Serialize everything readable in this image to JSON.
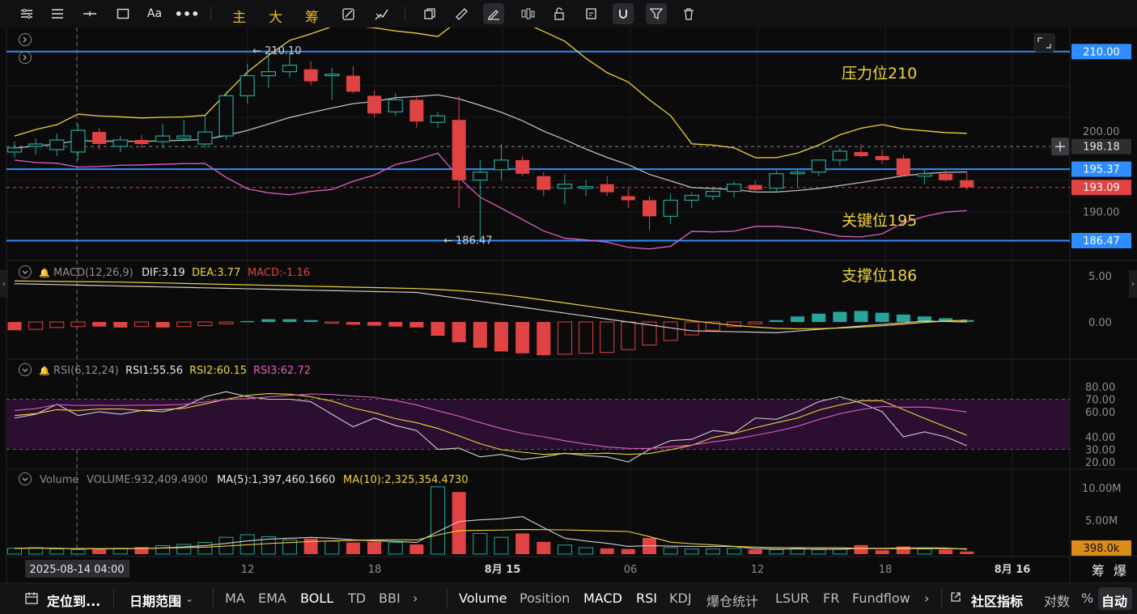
{
  "toolbar": {
    "char_zhu": "主",
    "char_da": "大",
    "char_chou": "筹",
    "text_aa": "Aa",
    "icons": [
      "settings-lines-icon",
      "menu-lines-icon",
      "horizontal-line-icon",
      "rectangle-icon",
      "text-icon",
      "more-dots-icon",
      "draw-tool-icon",
      "path-tool-icon",
      "copy-icon",
      "ruler-icon",
      "pen-icon",
      "candle-compare-icon",
      "lock-icon",
      "edit-icon",
      "magnet-icon",
      "filter-icon",
      "delete-icon"
    ]
  },
  "chart_data": {
    "type": "candlestick",
    "price_axis": {
      "ticks": [
        "200.00",
        "190.00"
      ],
      "min": 184,
      "max": 213
    },
    "time_axis": {
      "ticks": [
        "12",
        "18",
        "8月 15",
        "06",
        "12",
        "18",
        "8月 16"
      ],
      "crosshair_label": "2025-08-14 04:00"
    },
    "levels": [
      {
        "value": 210.0,
        "label": "210.00",
        "annotation": "压力位210"
      },
      {
        "value": 195.37,
        "label": "195.37",
        "annotation": "关键位195"
      },
      {
        "value": 186.47,
        "label": "186.47",
        "annotation": "支撑位186"
      }
    ],
    "current_price": {
      "value": 193.09,
      "label": "193.09"
    },
    "crosshair_price": {
      "value": 198.18,
      "label": "198.18"
    },
    "high_marker": "← 210.10",
    "low_marker": "← 186.47",
    "candles": [
      [
        197.5,
        198.8,
        196.8,
        198.0
      ],
      [
        198.2,
        199.2,
        197.2,
        198.5
      ],
      [
        197.8,
        199.8,
        197.0,
        199.0
      ],
      [
        197.5,
        201.0,
        196.5,
        200.2
      ],
      [
        200.0,
        200.5,
        197.8,
        198.5
      ],
      [
        198.2,
        199.5,
        197.5,
        199.0
      ],
      [
        199.0,
        199.6,
        198.0,
        198.5
      ],
      [
        198.8,
        201.0,
        198.0,
        199.5
      ],
      [
        199.2,
        201.5,
        198.8,
        199.5
      ],
      [
        198.5,
        202.0,
        198.0,
        200.0
      ],
      [
        199.5,
        205.0,
        199.0,
        204.5
      ],
      [
        204.5,
        208.5,
        203.5,
        207.0
      ],
      [
        207.0,
        209.5,
        205.5,
        207.5
      ],
      [
        207.5,
        210.1,
        206.8,
        208.3
      ],
      [
        207.8,
        208.8,
        205.8,
        206.3
      ],
      [
        207.0,
        208.0,
        204.0,
        207.2
      ],
      [
        207.0,
        208.2,
        204.8,
        205.0
      ],
      [
        204.5,
        205.2,
        201.8,
        202.3
      ],
      [
        202.5,
        204.8,
        202.0,
        204.0
      ],
      [
        204.0,
        204.5,
        200.5,
        201.3
      ],
      [
        201.2,
        202.5,
        200.5,
        202.0
      ],
      [
        201.5,
        204.5,
        190.5,
        194.0
      ],
      [
        194.0,
        196.5,
        186.47,
        195.0
      ],
      [
        195.3,
        198.5,
        194.0,
        196.5
      ],
      [
        196.5,
        197.0,
        194.5,
        194.8
      ],
      [
        194.5,
        195.0,
        192.0,
        192.8
      ],
      [
        193.0,
        194.8,
        191.0,
        193.5
      ],
      [
        193.0,
        194.0,
        192.0,
        193.2
      ],
      [
        193.5,
        194.5,
        192.0,
        192.5
      ],
      [
        192.0,
        193.0,
        190.5,
        191.5
      ],
      [
        191.5,
        192.0,
        187.8,
        189.5
      ],
      [
        189.5,
        192.3,
        188.5,
        191.5
      ],
      [
        191.5,
        192.5,
        190.5,
        192.1
      ],
      [
        192.0,
        193.2,
        191.5,
        192.6
      ],
      [
        192.6,
        193.8,
        191.8,
        193.5
      ],
      [
        193.4,
        194.0,
        192.5,
        192.8
      ],
      [
        193.0,
        195.2,
        192.5,
        194.8
      ],
      [
        194.8,
        195.5,
        193.2,
        195.0
      ],
      [
        195.0,
        196.5,
        194.5,
        196.5
      ],
      [
        196.5,
        198.0,
        195.8,
        197.6
      ],
      [
        197.5,
        198.5,
        196.8,
        197.0
      ],
      [
        197.0,
        197.8,
        196.0,
        196.5
      ],
      [
        196.7,
        197.2,
        194.5,
        194.6
      ],
      [
        194.5,
        195.5,
        193.5,
        194.8
      ],
      [
        194.8,
        195.5,
        193.8,
        194.0
      ],
      [
        194.0,
        195.0,
        192.8,
        193.09
      ]
    ]
  },
  "macd": {
    "title": "MACD(12,26,9)",
    "dif": "DIF:3.19",
    "dea": "DEA:3.77",
    "macd": "MACD:-1.16",
    "axis": [
      "5.00",
      "0.00"
    ],
    "hist": [
      -0.9,
      -0.8,
      -0.6,
      -0.5,
      -0.5,
      -0.6,
      -0.5,
      -0.6,
      -0.5,
      -0.4,
      -0.2,
      0.1,
      0.3,
      0.3,
      0.2,
      -0.1,
      -0.3,
      -0.4,
      -0.5,
      -0.6,
      -1.5,
      -2.2,
      -2.8,
      -3.2,
      -3.4,
      -3.6,
      -3.5,
      -3.4,
      -3.3,
      -3.0,
      -2.5,
      -2.0,
      -1.4,
      -0.9,
      -0.5,
      -0.2,
      0.2,
      0.6,
      0.9,
      1.1,
      1.2,
      1.0,
      0.8,
      0.6,
      0.4,
      0.2
    ]
  },
  "rsi": {
    "title": "RSI(6,12,24)",
    "rsi1": "RSI1:55.56",
    "rsi2": "RSI2:60.15",
    "rsi3": "RSI3:62.72",
    "axis": [
      "80.00",
      "70.00",
      "60.00",
      "40.00",
      "30.00",
      "20.00"
    ]
  },
  "volume": {
    "title": "Volume",
    "vol": "VOLUME:932,409.4900",
    "ma5": "MA(5):1,397,460.1660",
    "ma10": "MA(10):2,325,354.4730",
    "axis": [
      "10.00M",
      "5.00M"
    ],
    "current_label": "398.0k",
    "bars": [
      0.9,
      1.0,
      0.8,
      0.7,
      0.8,
      0.9,
      1.1,
      1.3,
      1.5,
      1.8,
      2.6,
      3.0,
      2.7,
      2.2,
      2.4,
      2.0,
      1.8,
      1.9,
      1.8,
      1.5,
      10.4,
      9.6,
      3.2,
      2.6,
      3.2,
      1.9,
      1.4,
      1.0,
      0.9,
      0.8,
      2.5,
      1.0,
      0.8,
      0.8,
      0.9,
      0.7,
      0.7,
      0.9,
      0.7,
      0.8,
      1.4,
      0.6,
      1.2,
      0.8,
      0.7,
      0.4
    ]
  },
  "bottom": {
    "locate": "定位到...",
    "date_range": "日期范围",
    "indicators_main": [
      "MA",
      "EMA",
      "BOLL",
      "TD",
      "BBI"
    ],
    "indicators_sub": [
      "Volume",
      "Position",
      "MACD",
      "RSI",
      "KDJ",
      "爆仓统计",
      "LSUR",
      "FR",
      "Fundflow"
    ],
    "community": "社区指标",
    "log": "对数",
    "pct": "%",
    "auto": "自动"
  },
  "side": {
    "chou": "筹",
    "bao": "爆"
  },
  "colors": {
    "up": "#26a69a",
    "down": "#e04343",
    "level": "#2f8cff",
    "yellow": "#f0d33a",
    "pink": "#e05ec6"
  }
}
